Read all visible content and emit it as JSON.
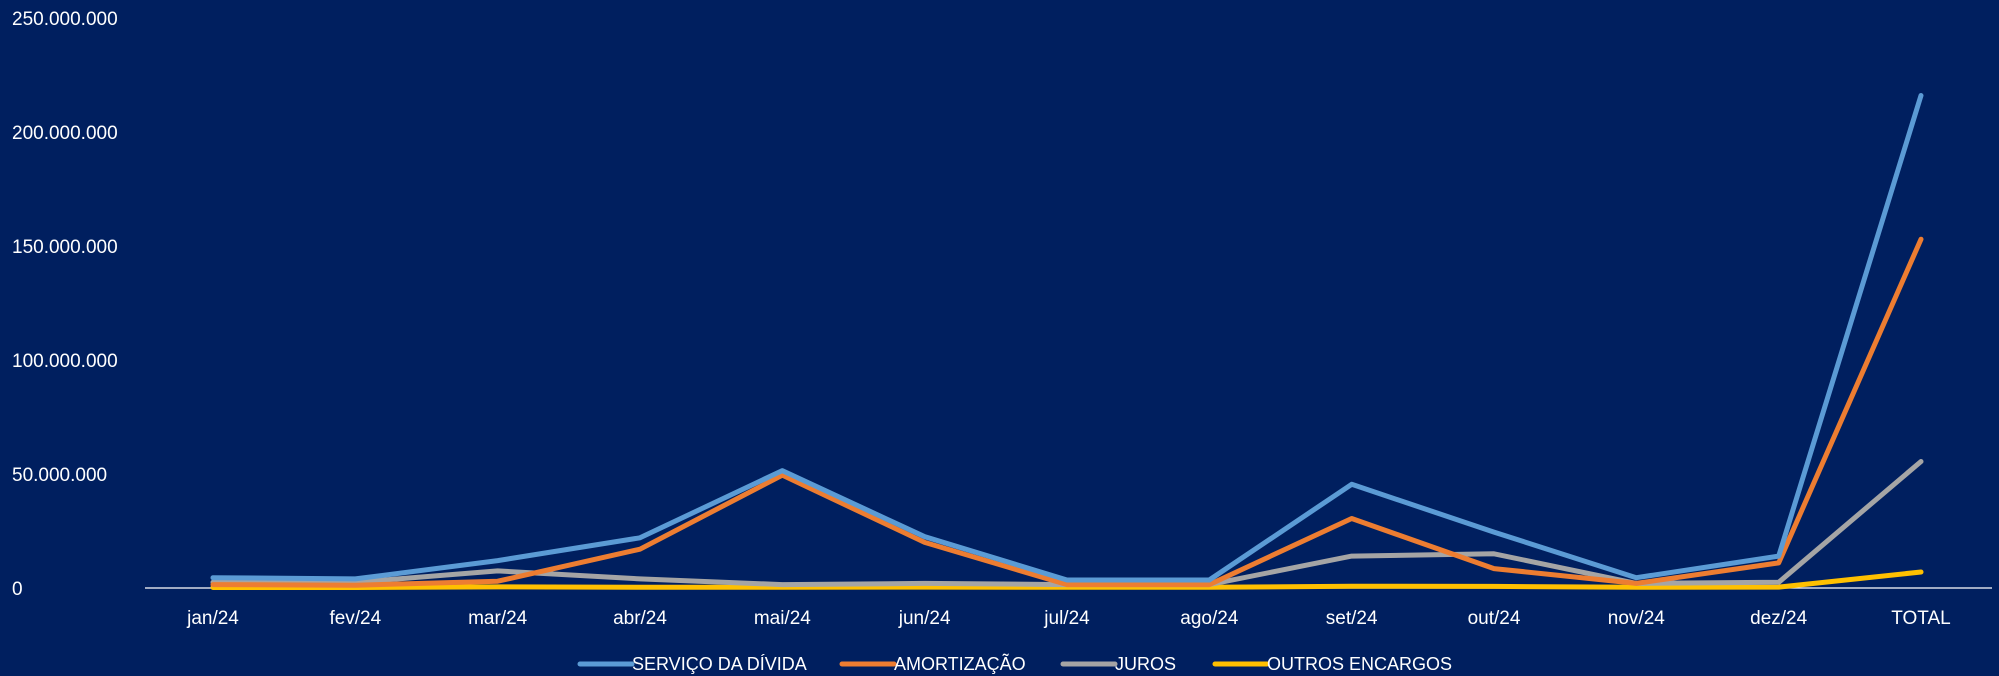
{
  "chart_data": {
    "type": "line",
    "title": "",
    "xlabel": "",
    "ylabel": "",
    "ylim": [
      0,
      250000000
    ],
    "yticks": [
      0,
      50000000,
      100000000,
      150000000,
      200000000,
      250000000
    ],
    "ytick_labels": [
      "0",
      "50.000.000",
      "100.000.000",
      "150.000.000",
      "200.000.000",
      "250.000.000"
    ],
    "categories": [
      "jan/24",
      "fev/24",
      "mar/24",
      "abr/24",
      "mai/24",
      "jun/24",
      "jul/24",
      "ago/24",
      "set/24",
      "out/24",
      "nov/24",
      "dez/24",
      "TOTAL"
    ],
    "grid": false,
    "legend_position": "bottom",
    "background": "#001f5f",
    "series": [
      {
        "name": "SERVIÇO DA DÍVIDA",
        "color": "#5b9bd5",
        "values": [
          4500000,
          4000000,
          12000000,
          22000000,
          51500000,
          22500000,
          3500000,
          3500000,
          45500000,
          24500000,
          4500000,
          14000000,
          216000000
        ]
      },
      {
        "name": "AMORTIZAÇÃO",
        "color": "#ed7d31",
        "values": [
          1500000,
          1200000,
          3000000,
          17000000,
          49500000,
          20000000,
          1500000,
          1500000,
          30500000,
          8500000,
          2000000,
          11000000,
          153000000
        ]
      },
      {
        "name": "JUROS",
        "color": "#a5a5a5",
        "values": [
          2500000,
          2500000,
          7500000,
          4000000,
          1500000,
          2000000,
          1500000,
          1500000,
          14000000,
          15000000,
          2000000,
          2500000,
          55500000
        ]
      },
      {
        "name": "OUTROS ENCARGOS",
        "color": "#ffc000",
        "values": [
          200000,
          200000,
          500000,
          300000,
          300000,
          400000,
          300000,
          300000,
          800000,
          700000,
          300000,
          400000,
          7000000
        ]
      }
    ]
  }
}
